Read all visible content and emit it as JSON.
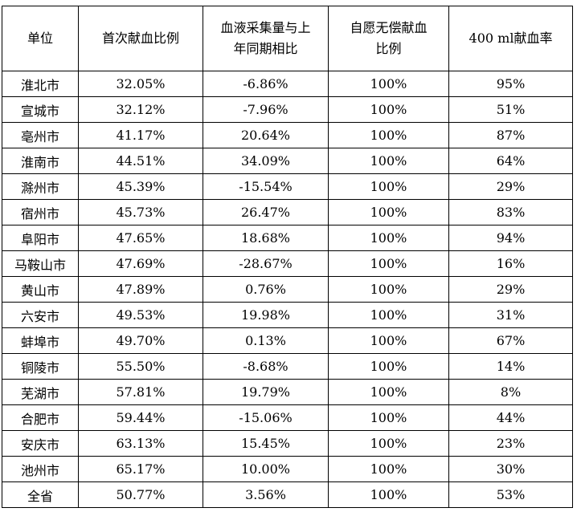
{
  "table": {
    "headers": [
      {
        "lines": [
          "单位"
        ]
      },
      {
        "lines": [
          "首次献血比例"
        ]
      },
      {
        "lines": [
          "血液采集量与上",
          "年同期相比"
        ]
      },
      {
        "lines": [
          "自愿无偿献血",
          "比例"
        ]
      },
      {
        "lines": [
          "400 ml献血率"
        ]
      }
    ],
    "rows": [
      [
        "淮北市",
        "32.05%",
        "-6.86%",
        "100%",
        "95%"
      ],
      [
        "宣城市",
        "32.12%",
        "-7.96%",
        "100%",
        "51%"
      ],
      [
        "亳州市",
        "41.17%",
        "20.64%",
        "100%",
        "87%"
      ],
      [
        "淮南市",
        "44.51%",
        "34.09%",
        "100%",
        "64%"
      ],
      [
        "滁州市",
        "45.39%",
        "-15.54%",
        "100%",
        "29%"
      ],
      [
        "宿州市",
        "45.73%",
        "26.47%",
        "100%",
        "83%"
      ],
      [
        "阜阳市",
        "47.65%",
        "18.68%",
        "100%",
        "94%"
      ],
      [
        "马鞍山市",
        "47.69%",
        "-28.67%",
        "100%",
        "16%"
      ],
      [
        "黄山市",
        "47.89%",
        "0.76%",
        "100%",
        "29%"
      ],
      [
        "六安市",
        "49.53%",
        "19.98%",
        "100%",
        "31%"
      ],
      [
        "蚌埠市",
        "49.70%",
        "0.13%",
        "100%",
        "67%"
      ],
      [
        "铜陵市",
        "55.50%",
        "-8.68%",
        "100%",
        "14%"
      ],
      [
        "芜湖市",
        "57.81%",
        "19.79%",
        "100%",
        "8%"
      ],
      [
        "合肥市",
        "59.44%",
        "-15.06%",
        "100%",
        "44%"
      ],
      [
        "安庆市",
        "63.13%",
        "15.45%",
        "100%",
        "23%"
      ],
      [
        "池州市",
        "65.17%",
        "10.00%",
        "100%",
        "30%"
      ],
      [
        "全省",
        "50.77%",
        "3.56%",
        "100%",
        "53%"
      ]
    ]
  }
}
